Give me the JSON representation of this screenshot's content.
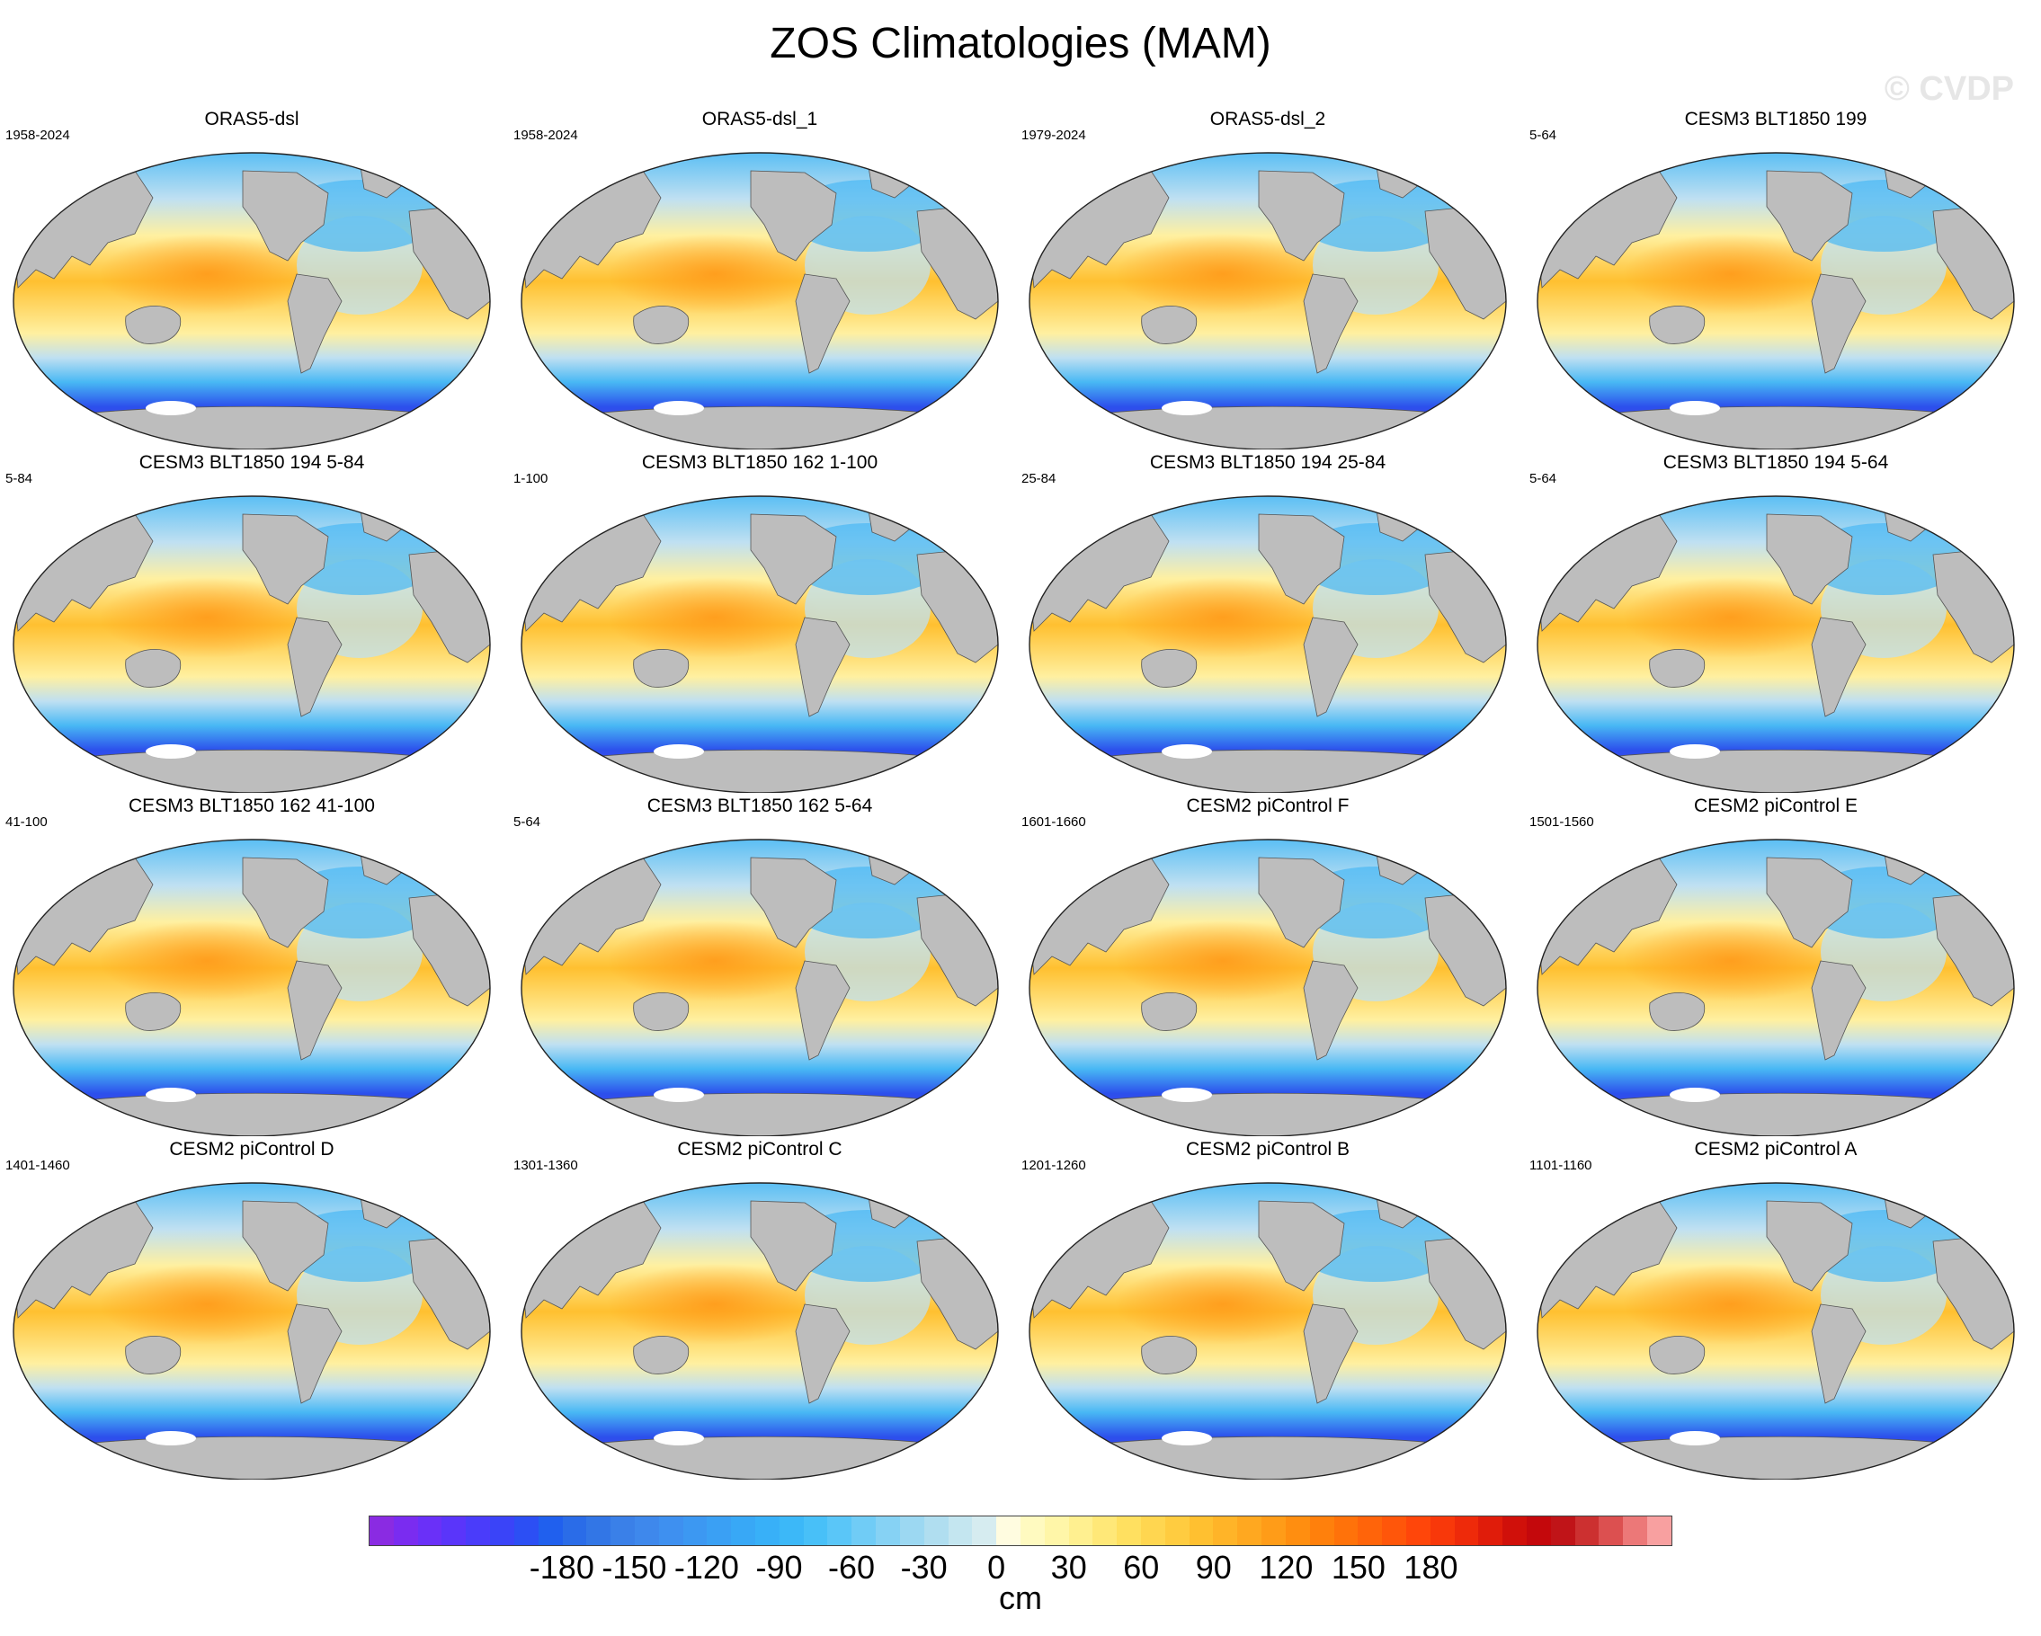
{
  "title": "ZOS Climatologies (MAM)",
  "watermark": "© CVDP",
  "panels": [
    {
      "title": "ORAS5-dsl",
      "years": "1958-2024"
    },
    {
      "title": "ORAS5-dsl_1",
      "years": "1958-2024"
    },
    {
      "title": "ORAS5-dsl_2",
      "years": "1979-2024"
    },
    {
      "title": "CESM3 BLT1850 199",
      "years": "5-64"
    },
    {
      "title": "CESM3 BLT1850 194 5-84",
      "years": "5-84"
    },
    {
      "title": "CESM3 BLT1850 162 1-100",
      "years": "1-100"
    },
    {
      "title": "CESM3 BLT1850 194 25-84",
      "years": "25-84"
    },
    {
      "title": "CESM3 BLT1850 194 5-64",
      "years": "5-64"
    },
    {
      "title": "CESM3 BLT1850 162 41-100",
      "years": "41-100"
    },
    {
      "title": "CESM3 BLT1850 162 5-64",
      "years": "5-64"
    },
    {
      "title": "CESM2 piControl F",
      "years": "1601-1660"
    },
    {
      "title": "CESM2 piControl E",
      "years": "1501-1560"
    },
    {
      "title": "CESM2 piControl D",
      "years": "1401-1460"
    },
    {
      "title": "CESM2 piControl C",
      "years": "1301-1360"
    },
    {
      "title": "CESM2 piControl B",
      "years": "1201-1260"
    },
    {
      "title": "CESM2 piControl A",
      "years": "1101-1160"
    }
  ],
  "colorbar": {
    "labels": [
      "-180",
      "-150",
      "-120",
      "-90",
      "-60",
      "-30",
      "0",
      "30",
      "60",
      "90",
      "120",
      "150",
      "180"
    ],
    "units": "cm",
    "colors": [
      "#8a2be2",
      "#7a2cf0",
      "#6a30f8",
      "#5a35fa",
      "#4a3cfa",
      "#3a44f8",
      "#2c4ff4",
      "#2060ee",
      "#2a6ce8",
      "#3276e6",
      "#3a80e8",
      "#3e88ec",
      "#3e90f0",
      "#3c98f2",
      "#3aa0f4",
      "#38a8f6",
      "#38b0f8",
      "#3cb8f8",
      "#48c0f8",
      "#5ac6f8",
      "#70ccf6",
      "#86d2f4",
      "#9cd8f2",
      "#b0def0",
      "#c4e6f0",
      "#d6ecf0",
      "#fffce0",
      "#fffac0",
      "#fff6a8",
      "#fff090",
      "#ffe878",
      "#ffe060",
      "#ffd650",
      "#ffcc40",
      "#ffc030",
      "#ffb428",
      "#ffa820",
      "#ff9c18",
      "#ff8e10",
      "#ff800c",
      "#ff720a",
      "#ff640a",
      "#ff560a",
      "#ff460a",
      "#f8380a",
      "#ee2a0a",
      "#e01c0a",
      "#d0100a",
      "#c4080c",
      "#c01418",
      "#cc3030",
      "#dc5050",
      "#ec7878",
      "#f8a0a0"
    ]
  },
  "map": {
    "land_color": "#bdbdbd",
    "ice_color": "#ffffff",
    "pacific_color": "#ffc030",
    "warm_core_color": "#ff9a1a",
    "subtropics_color": "#fff0a0",
    "atlantic_color": "#bfe0f2",
    "north_ocean_color": "#48b8f4",
    "southern_ocean_color": "#2c50ec",
    "antarctic_color": "#5a30f0"
  }
}
